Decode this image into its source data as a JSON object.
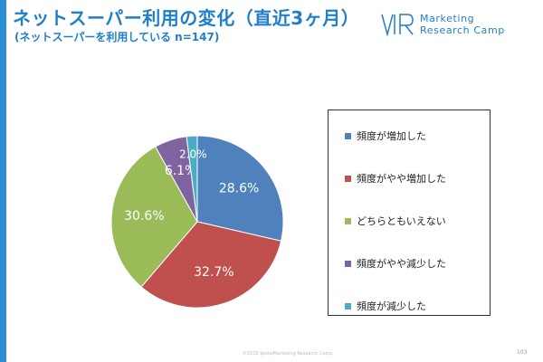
{
  "header": {
    "title": "ネットスーパー利用の変化（直近3ヶ月）",
    "subtitle": "(ネットスーパーを利用している n=147)"
  },
  "logo": {
    "line1": "Marketing",
    "line2": "Research Camp"
  },
  "chart_data": {
    "type": "pie",
    "slices": [
      {
        "label": "頻度が増加した",
        "value": 28.6,
        "value_label": "28.6%",
        "color": "#4f81bd"
      },
      {
        "label": "頻度がやや増加した",
        "value": 32.7,
        "value_label": "32.7%",
        "color": "#c0504d"
      },
      {
        "label": "どちらともいえない",
        "value": 30.6,
        "value_label": "30.6%",
        "color": "#9bbb59"
      },
      {
        "label": "頻度がやや減少した",
        "value": 6.1,
        "value_label": "6.1%",
        "color": "#8064a2"
      },
      {
        "label": "頻度が減少した",
        "value": 2.0,
        "value_label": "2.0%",
        "color": "#4bacc6"
      }
    ],
    "start_angle_deg": 0,
    "direction": "clockwise",
    "legend_position": "right"
  },
  "footer": {
    "copyright": "©2020 Ipsos/Marketing Research Camp",
    "page_number": "103"
  }
}
